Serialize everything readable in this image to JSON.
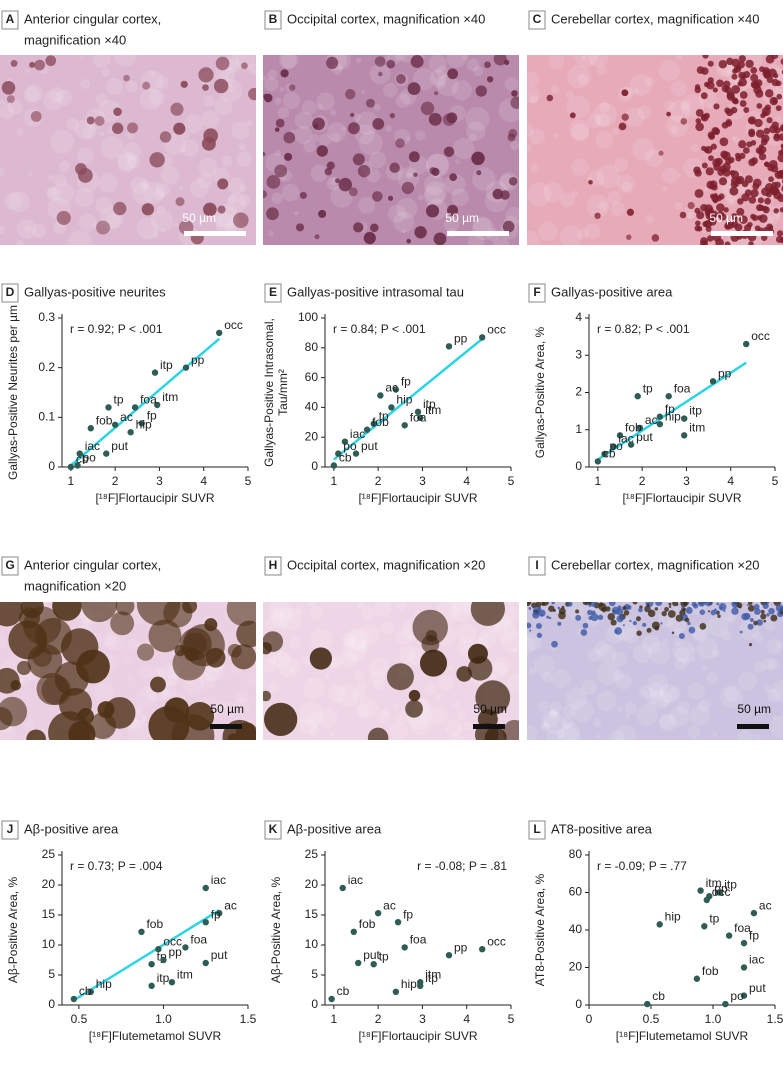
{
  "image_panels": [
    {
      "letter": "A",
      "title": [
        "Anterior cingular cortex,",
        "magnification ×40"
      ],
      "scale_bar": "50 µm"
    },
    {
      "letter": "B",
      "title": [
        "Occipital cortex, magnification ×40"
      ],
      "scale_bar": "50 µm"
    },
    {
      "letter": "C",
      "title": [
        "Cerebellar cortex, magnification ×40"
      ],
      "scale_bar": "50 µm"
    },
    {
      "letter": "G",
      "title": [
        "Anterior cingular cortex,",
        "magnification ×20"
      ],
      "scale_bar": "50 µm"
    },
    {
      "letter": "H",
      "title": [
        "Occipital cortex, magnification ×20"
      ],
      "scale_bar": "50 µm"
    },
    {
      "letter": "I",
      "title": [
        "Cerebellar cortex, magnification ×20"
      ],
      "scale_bar": "50 µm"
    }
  ],
  "chart_data": [
    {
      "type": "scatter",
      "letter": "D",
      "title": "Gallyas-positive neurites",
      "annotation": "r = 0.92; P < .001",
      "xlabel": "[¹⁸F]Flortaucipir SUVR",
      "ylabel": [
        "Gallyas-Positive Neurites per µm"
      ],
      "xlim": [
        0.8,
        5
      ],
      "xticks": [
        1,
        2,
        3,
        4,
        5
      ],
      "ylim": [
        0,
        0.3
      ],
      "yticks": [
        0,
        0.1,
        0.2,
        0.3
      ],
      "color": "#2f5d55",
      "point_labels": [
        "occ",
        "pp",
        "itp",
        "itm",
        "foa",
        "fp",
        "hip",
        "ac",
        "tp",
        "fob",
        "iac",
        "put",
        "po",
        "cb"
      ],
      "x": [
        4.35,
        3.6,
        2.9,
        2.95,
        2.45,
        2.6,
        2.35,
        2.0,
        1.85,
        1.45,
        1.2,
        1.8,
        1.15,
        1.0
      ],
      "values": [
        0.27,
        0.2,
        0.19,
        0.125,
        0.12,
        0.088,
        0.07,
        0.085,
        0.12,
        0.078,
        0.027,
        0.027,
        0.003,
        0.0
      ],
      "fit_line": {
        "x": [
          1.0,
          4.35
        ],
        "values": [
          0.003,
          0.258
        ],
        "color": "#2bd4e4"
      }
    },
    {
      "type": "scatter",
      "letter": "E",
      "title": "Gallyas-positive intrasomal tau",
      "annotation": "r = 0.84; P < .001",
      "xlabel": "[¹⁸F]Flortaucipir SUVR",
      "ylabel": [
        "Gallyas-Positive Intrasomal,",
        "Tau/mm²"
      ],
      "xlim": [
        0.8,
        5
      ],
      "xticks": [
        1,
        2,
        3,
        4,
        5
      ],
      "ylim": [
        0,
        100
      ],
      "yticks": [
        0,
        20,
        40,
        60,
        80,
        100
      ],
      "color": "#2f5d55",
      "point_labels": [
        "occ",
        "pp",
        "fp",
        "ac",
        "hip",
        "itp",
        "itm",
        "foa",
        "tp",
        "fob",
        "iac",
        "po",
        "put",
        "cb"
      ],
      "x": [
        4.35,
        3.6,
        2.4,
        2.05,
        2.3,
        2.9,
        2.95,
        2.6,
        1.9,
        1.75,
        1.25,
        1.1,
        1.5,
        1.0
      ],
      "values": [
        87,
        81,
        52,
        48,
        40,
        37,
        33,
        28,
        29,
        25,
        17,
        9,
        9,
        1
      ],
      "fit_line": {
        "x": [
          1.0,
          4.35
        ],
        "values": [
          5,
          86
        ],
        "color": "#2bd4e4"
      }
    },
    {
      "type": "scatter",
      "letter": "F",
      "title": "Gallyas-positive area",
      "annotation": "r = 0.82; P < .001",
      "xlabel": "[¹⁸F]Flortaucipir SUVR",
      "ylabel": [
        "Gallyas-Positive Area, %"
      ],
      "xlim": [
        0.8,
        5
      ],
      "xticks": [
        1,
        2,
        3,
        4,
        5
      ],
      "ylim": [
        0,
        4
      ],
      "yticks": [
        0,
        1,
        2,
        3,
        4
      ],
      "color": "#2f5d55",
      "point_labels": [
        "occ",
        "pp",
        "tp",
        "foa",
        "itp",
        "fp",
        "ac",
        "hip",
        "itm",
        "fob",
        "iac",
        "put",
        "po",
        "cb"
      ],
      "x": [
        4.35,
        3.6,
        1.9,
        2.6,
        2.95,
        2.4,
        1.95,
        2.4,
        2.95,
        1.5,
        1.35,
        1.75,
        1.15,
        1.0
      ],
      "values": [
        3.3,
        2.3,
        1.9,
        1.9,
        1.3,
        1.35,
        1.05,
        1.15,
        0.85,
        0.85,
        0.55,
        0.6,
        0.35,
        0.15
      ],
      "fit_line": {
        "x": [
          1.0,
          4.35
        ],
        "values": [
          0.2,
          2.8
        ],
        "color": "#2bd4e4"
      }
    },
    {
      "type": "scatter",
      "letter": "J",
      "title": "Aβ-positive area",
      "annotation": "r = 0.73; P = .004",
      "xlabel": "[¹⁸F]Flutemetamol SUVR",
      "ylabel": [
        "Aβ-Positive Area, %"
      ],
      "xlim": [
        0.4,
        1.5
      ],
      "xticks": [
        {
          "value": 0.5,
          "label": "0.5"
        },
        {
          "value": 1,
          "label": "1.0"
        },
        {
          "value": 1.5,
          "label": "1.5"
        }
      ],
      "ylim": [
        0,
        25
      ],
      "yticks": [
        0,
        5,
        10,
        15,
        20,
        25
      ],
      "color": "#2f5d55",
      "point_labels": [
        "iac",
        "ac",
        "fp",
        "fob",
        "occ",
        "foa",
        "tp",
        "pp",
        "put",
        "itm",
        "itp",
        "hip",
        "cb"
      ],
      "x": [
        1.25,
        1.33,
        1.25,
        0.87,
        0.97,
        1.13,
        0.93,
        1.0,
        1.25,
        1.05,
        0.93,
        0.57,
        0.47
      ],
      "values": [
        19.5,
        15.3,
        13.8,
        12.2,
        9.3,
        9.6,
        6.8,
        7.5,
        7,
        3.8,
        3.2,
        2.2,
        1
      ],
      "fit_line": {
        "x": [
          0.47,
          1.33
        ],
        "values": [
          0.8,
          15.8
        ],
        "color": "#2bd4e4"
      }
    },
    {
      "type": "scatter",
      "letter": "K",
      "title": "Aβ-positive area",
      "annotation": "r = -0.08; P = .81",
      "xlabel": "[¹⁸F]Flortaucipir SUVR",
      "ylabel": [
        "Aβ-Positive Area, %"
      ],
      "xlim": [
        0.8,
        5
      ],
      "xticks": [
        1,
        2,
        3,
        4,
        5
      ],
      "ylim": [
        0,
        25
      ],
      "yticks": [
        0,
        5,
        10,
        15,
        20,
        25
      ],
      "color": "#2f5d55",
      "point_labels": [
        "iac",
        "ac",
        "fob",
        "fp",
        "foa",
        "pp",
        "occ",
        "put",
        "tp",
        "itm",
        "hip",
        "itp",
        "cb"
      ],
      "x": [
        1.2,
        2.0,
        1.45,
        2.45,
        2.6,
        3.6,
        4.35,
        1.55,
        1.9,
        2.95,
        2.4,
        2.95,
        0.95
      ],
      "values": [
        19.5,
        15.3,
        12.2,
        13.8,
        9.6,
        8.3,
        9.3,
        7,
        6.8,
        3.8,
        2.2,
        3.2,
        1
      ]
    },
    {
      "type": "scatter",
      "letter": "L",
      "title": "AT8-positive area",
      "annotation": "r = -0.09; P = .77",
      "xlabel": "[¹⁸F]Flutemetamol SUVR",
      "ylabel": [
        "AT8-Positive Area, %"
      ],
      "xlim": [
        0,
        1.5
      ],
      "xticks": [
        0,
        {
          "value": 0.5,
          "label": "0.5"
        },
        {
          "value": 1,
          "label": "1.0"
        },
        {
          "value": 1.5,
          "label": "1.5"
        }
      ],
      "ylim": [
        0,
        80
      ],
      "yticks": [
        0,
        20,
        40,
        60,
        80
      ],
      "color": "#2f5d55",
      "point_labels": [
        "pp",
        "itm",
        "itp",
        "occ",
        "ac",
        "hip",
        "tp",
        "foa",
        "fp",
        "iac",
        "fob",
        "put",
        "po",
        "cb"
      ],
      "x": [
        0.97,
        0.9,
        1.05,
        0.95,
        1.33,
        0.57,
        0.93,
        1.13,
        1.25,
        1.25,
        0.87,
        1.25,
        1.1,
        0.47
      ],
      "values": [
        58,
        61,
        60,
        56,
        49,
        43,
        42,
        37,
        33,
        20,
        14,
        5,
        0.5,
        0.5
      ]
    }
  ]
}
